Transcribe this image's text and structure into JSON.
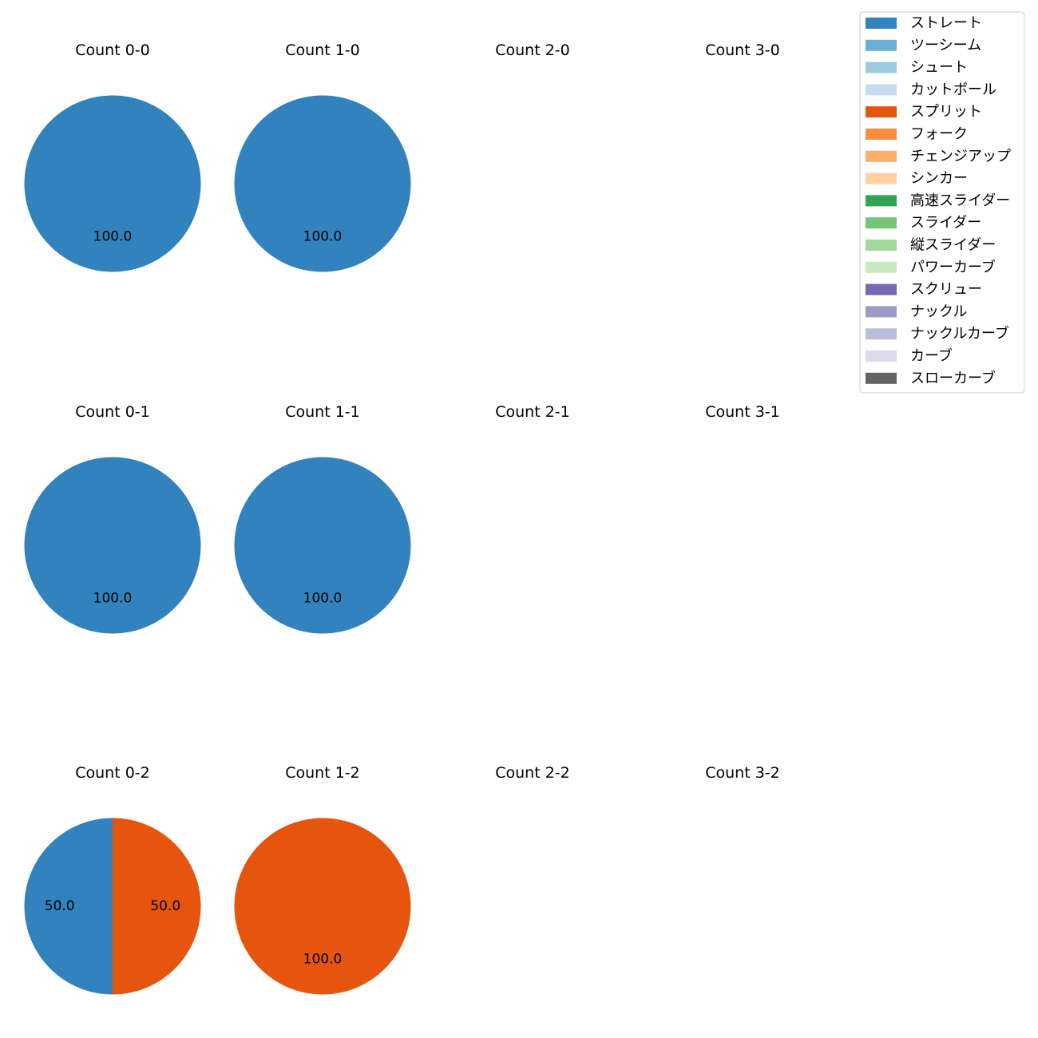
{
  "chart_data": {
    "type": "pie",
    "legend_position": "top-right",
    "legend": [
      {
        "label": "ストレート",
        "color": "#3182bd"
      },
      {
        "label": "ツーシーム",
        "color": "#6baed6"
      },
      {
        "label": "シュート",
        "color": "#9ecae1"
      },
      {
        "label": "カットボール",
        "color": "#c6dbef"
      },
      {
        "label": "スプリット",
        "color": "#e6550d"
      },
      {
        "label": "フォーク",
        "color": "#fd8d3c"
      },
      {
        "label": "チェンジアップ",
        "color": "#fdae6b"
      },
      {
        "label": "シンカー",
        "color": "#fdd0a2"
      },
      {
        "label": "高速スライダー",
        "color": "#31a354"
      },
      {
        "label": "スライダー",
        "color": "#74c476"
      },
      {
        "label": "縦スライダー",
        "color": "#a1d99b"
      },
      {
        "label": "パワーカーブ",
        "color": "#c7e9c0"
      },
      {
        "label": "スクリュー",
        "color": "#756bb1"
      },
      {
        "label": "ナックル",
        "color": "#9e9ac8"
      },
      {
        "label": "ナックルカーブ",
        "color": "#bcbddc"
      },
      {
        "label": "カーブ",
        "color": "#dadaeb"
      },
      {
        "label": "スローカーブ",
        "color": "#636363"
      }
    ],
    "panels": [
      {
        "title": "Count 0-0",
        "slices": [
          {
            "pitch": "ストレート",
            "value": 100.0,
            "label": "100.0"
          }
        ]
      },
      {
        "title": "Count 1-0",
        "slices": [
          {
            "pitch": "ストレート",
            "value": 100.0,
            "label": "100.0"
          }
        ]
      },
      {
        "title": "Count 2-0",
        "slices": []
      },
      {
        "title": "Count 3-0",
        "slices": []
      },
      {
        "title": "Count 0-1",
        "slices": [
          {
            "pitch": "ストレート",
            "value": 100.0,
            "label": "100.0"
          }
        ]
      },
      {
        "title": "Count 1-1",
        "slices": [
          {
            "pitch": "ストレート",
            "value": 100.0,
            "label": "100.0"
          }
        ]
      },
      {
        "title": "Count 2-1",
        "slices": []
      },
      {
        "title": "Count 3-1",
        "slices": []
      },
      {
        "title": "Count 0-2",
        "slices": [
          {
            "pitch": "ストレート",
            "value": 50.0,
            "label": "50.0"
          },
          {
            "pitch": "スプリット",
            "value": 50.0,
            "label": "50.0"
          }
        ]
      },
      {
        "title": "Count 1-2",
        "slices": [
          {
            "pitch": "スプリット",
            "value": 100.0,
            "label": "100.0"
          }
        ]
      },
      {
        "title": "Count 2-2",
        "slices": []
      },
      {
        "title": "Count 3-2",
        "slices": []
      }
    ]
  }
}
